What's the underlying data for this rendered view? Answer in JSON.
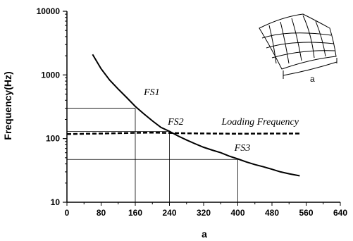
{
  "chart_data": {
    "type": "line",
    "xlabel": "a",
    "ylabel": "Frequency(Hz)",
    "xlim": [
      0,
      640
    ],
    "ylim": [
      10,
      10000
    ],
    "yscale": "log",
    "x_ticks": [
      "0",
      "80",
      "160",
      "240",
      "320",
      "400",
      "480",
      "560",
      "640"
    ],
    "y_ticks": [
      "10",
      "100",
      "1000",
      "10000"
    ],
    "grid": false,
    "series": [
      {
        "style": "solid",
        "points": [
          [
            60,
            2100
          ],
          [
            80,
            1250
          ],
          [
            100,
            830
          ],
          [
            120,
            600
          ],
          [
            140,
            440
          ],
          [
            160,
            320
          ],
          [
            180,
            245
          ],
          [
            200,
            190
          ],
          [
            220,
            150
          ],
          [
            240,
            130
          ],
          [
            260,
            110
          ],
          [
            280,
            95
          ],
          [
            300,
            83
          ],
          [
            320,
            73
          ],
          [
            340,
            66
          ],
          [
            360,
            60
          ],
          [
            380,
            53
          ],
          [
            400,
            48
          ],
          [
            420,
            43
          ],
          [
            440,
            39
          ],
          [
            460,
            36
          ],
          [
            480,
            33
          ],
          [
            500,
            30
          ],
          [
            520,
            28
          ],
          [
            545,
            26
          ]
        ]
      },
      {
        "name": "Loading Frequency",
        "style": "dashed",
        "points": [
          [
            0,
            118
          ],
          [
            80,
            120
          ],
          [
            160,
            123
          ],
          [
            200,
            124
          ],
          [
            280,
            121
          ],
          [
            400,
            119
          ],
          [
            480,
            120
          ],
          [
            545,
            120
          ]
        ]
      }
    ],
    "reference_lines": [
      {
        "label": "FS1",
        "x": 160,
        "y": 300
      },
      {
        "label": "FS2",
        "x": 240,
        "y": 130
      },
      {
        "label": "FS3",
        "x": 400,
        "y": 47
      }
    ],
    "annotations": [
      {
        "text": "FS1",
        "x": 180,
        "y": 480
      },
      {
        "text": "FS2",
        "x": 236,
        "y": 165
      },
      {
        "text": "FS3",
        "x": 392,
        "y": 64
      },
      {
        "text": "Loading Frequency",
        "x": 362,
        "y": 165
      }
    ],
    "inset": {
      "label": "a",
      "description_icon": "plate-mesh-icon"
    }
  }
}
